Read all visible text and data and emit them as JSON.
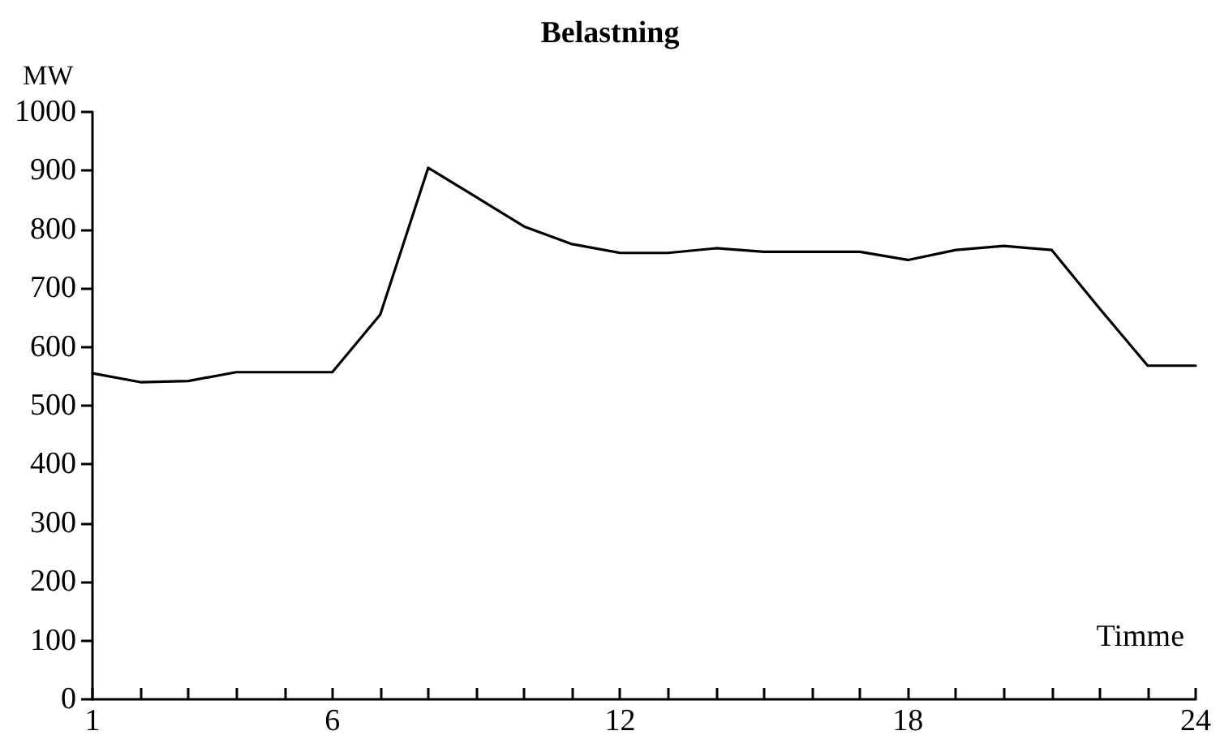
{
  "chart_data": {
    "type": "line",
    "title": "Belastning",
    "xlabel": "Timme",
    "ylabel": "MW",
    "x": [
      1,
      2,
      3,
      4,
      5,
      6,
      7,
      8,
      9,
      10,
      11,
      12,
      13,
      14,
      15,
      16,
      17,
      18,
      19,
      20,
      21,
      22,
      23,
      24
    ],
    "series": [
      {
        "color": "#000000",
        "values": [
          555,
          540,
          542,
          557,
          557,
          557,
          655,
          905,
          855,
          805,
          775,
          760,
          760,
          768,
          762,
          762,
          762,
          748,
          765,
          772,
          765,
          665,
          568,
          568
        ]
      }
    ],
    "xlim": [
      1,
      24
    ],
    "xticks": [
      1,
      {
        "value": 2,
        "label": null
      },
      {
        "value": 3,
        "label": null
      },
      {
        "value": 4,
        "label": null
      },
      {
        "value": 5,
        "label": null
      },
      6,
      {
        "value": 7,
        "label": null
      },
      {
        "value": 8,
        "label": null
      },
      {
        "value": 9,
        "label": null
      },
      {
        "value": 10,
        "label": null
      },
      {
        "value": 11,
        "label": null
      },
      12,
      {
        "value": 13,
        "label": null
      },
      {
        "value": 14,
        "label": null
      },
      {
        "value": 15,
        "label": null
      },
      {
        "value": 16,
        "label": null
      },
      {
        "value": 17,
        "label": null
      },
      18,
      {
        "value": 19,
        "label": null
      },
      {
        "value": 20,
        "label": null
      },
      {
        "value": 21,
        "label": null
      },
      {
        "value": 22,
        "label": null
      },
      {
        "value": 23,
        "label": null
      },
      24
    ],
    "ylim": [
      0,
      1000
    ],
    "yticks": [
      0,
      100,
      200,
      300,
      400,
      500,
      600,
      700,
      800,
      900,
      1000
    ],
    "grid": false,
    "marker": "none",
    "line_style": "solid"
  }
}
